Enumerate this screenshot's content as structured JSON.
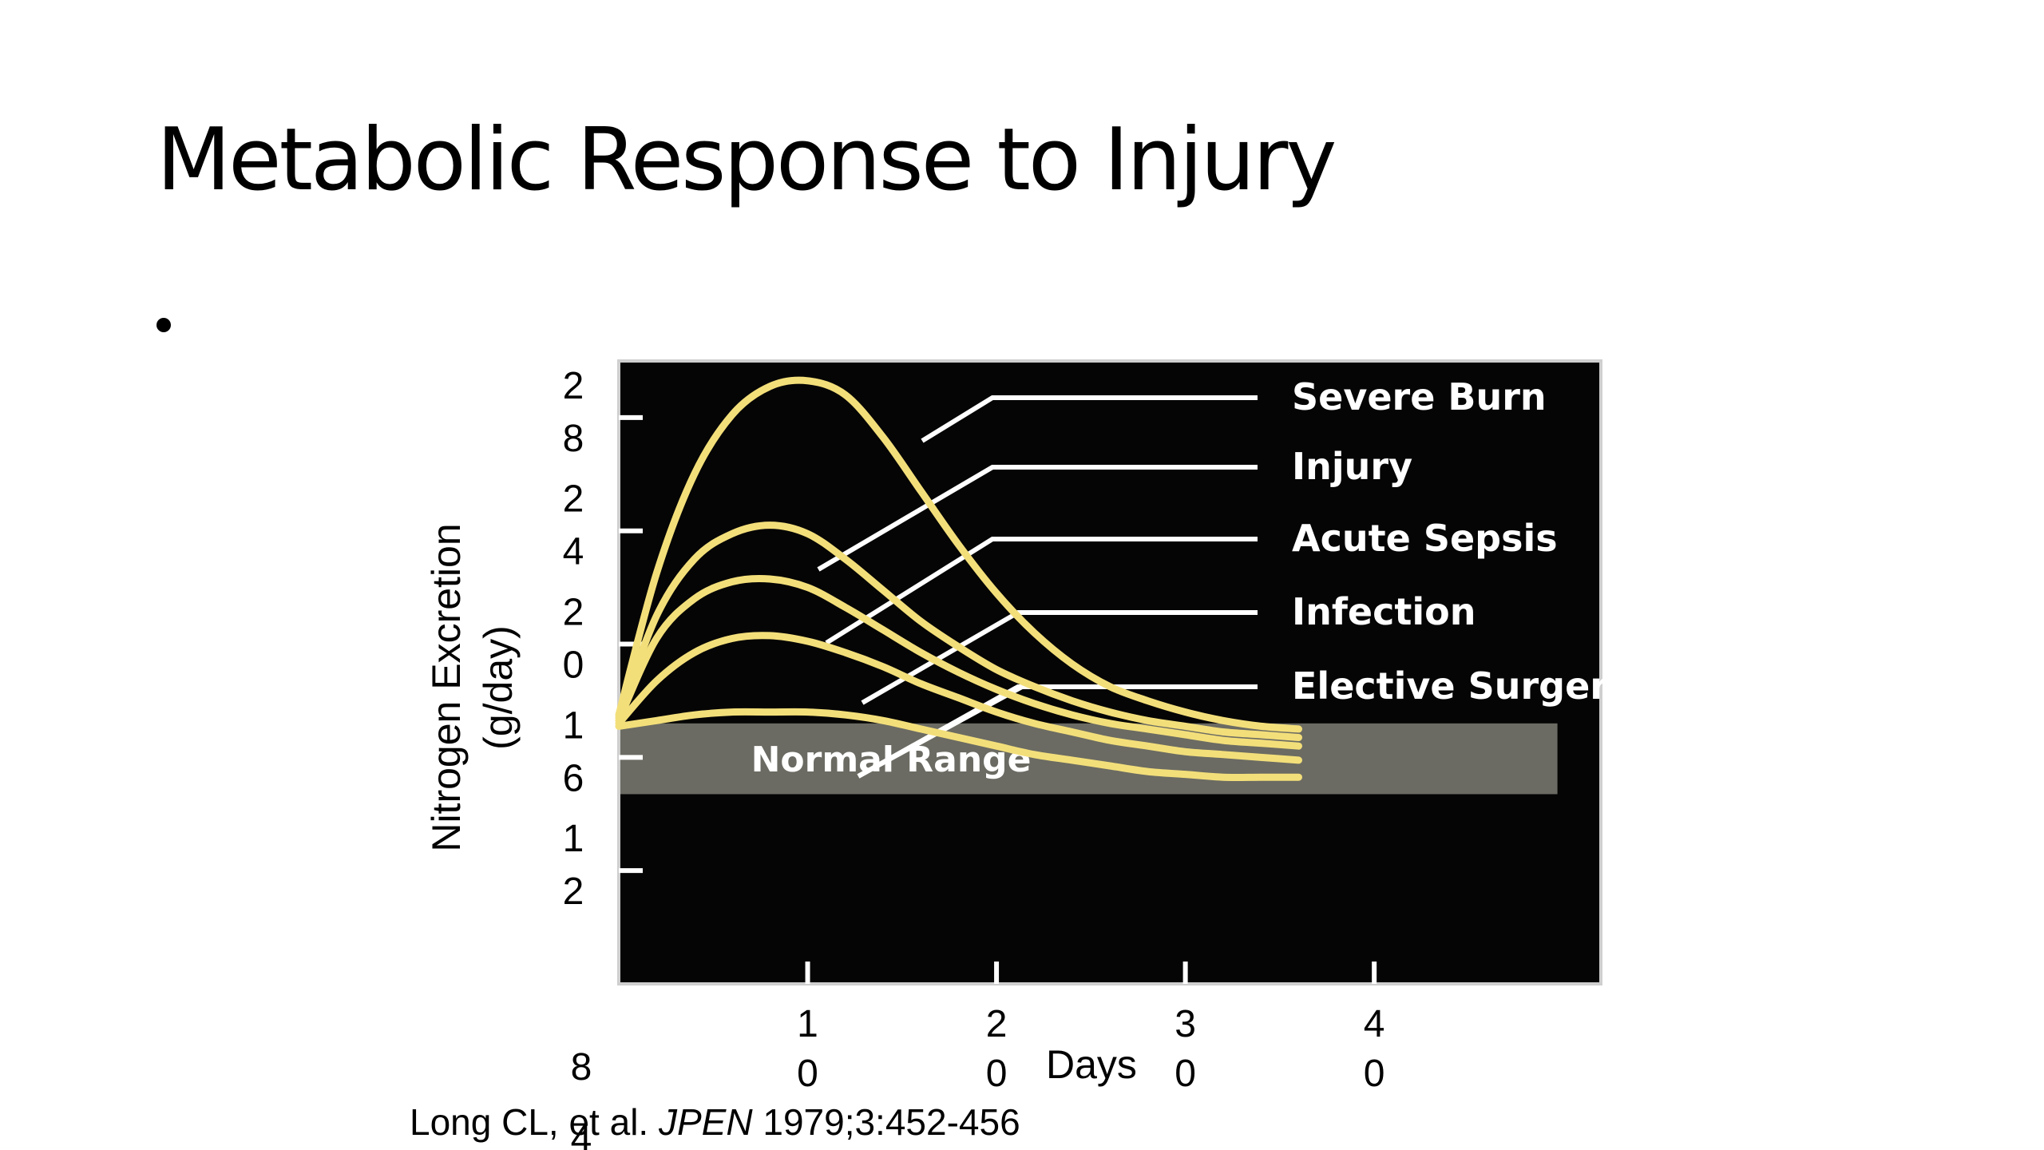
{
  "slide": {
    "title": "Metabolic Response to Injury"
  },
  "citation": {
    "authors": "Long CL, et al. ",
    "journal": "JPEN",
    "rest": " 1979;3:452-456"
  },
  "colors": {
    "plot_background": "#050505",
    "curve": "#f3df7a",
    "normal_band": "#6b6b63",
    "text_on_plot": "#ffffff"
  },
  "chart_data": {
    "type": "line",
    "xlabel": "Days",
    "ylabel": "Nitrogen Excretion (g/day)",
    "xlim": [
      0,
      52
    ],
    "ylim": [
      8,
      30
    ],
    "x_ticks": [
      {
        "value": 10,
        "lines": [
          "1",
          "0"
        ]
      },
      {
        "value": 20,
        "lines": [
          "2",
          "0"
        ]
      },
      {
        "value": 30,
        "lines": [
          "3",
          "0"
        ]
      },
      {
        "value": 40,
        "lines": [
          "4",
          "0"
        ]
      }
    ],
    "x_origin_label": {
      "lines": [
        "8",
        "4"
      ]
    },
    "y_ticks": [
      {
        "value": 12,
        "lines": [
          "1",
          "2"
        ]
      },
      {
        "value": 16,
        "lines": [
          "1",
          "6"
        ]
      },
      {
        "value": 20,
        "lines": [
          "2",
          "0"
        ]
      },
      {
        "value": 24,
        "lines": [
          "2",
          "4"
        ]
      },
      {
        "value": 28,
        "lines": [
          "2",
          "8"
        ]
      }
    ],
    "normal_range": {
      "label": "Normal Range",
      "y": [
        14.7,
        17.2
      ]
    },
    "series": [
      {
        "name": "Severe Burn",
        "x": [
          0,
          2,
          4,
          6,
          8,
          10,
          12,
          14,
          16,
          18,
          20,
          22,
          24,
          26,
          28,
          30,
          32,
          34,
          36
        ],
        "y": [
          17.5,
          22.5,
          26.0,
          28.1,
          29.1,
          29.3,
          28.8,
          27.3,
          25.4,
          23.5,
          21.8,
          20.4,
          19.3,
          18.5,
          18.0,
          17.6,
          17.3,
          17.1,
          17.0
        ]
      },
      {
        "name": "Injury",
        "x": [
          0,
          2,
          4,
          6,
          8,
          10,
          12,
          14,
          16,
          18,
          20,
          22,
          24,
          26,
          28,
          30,
          32,
          34,
          36
        ],
        "y": [
          17.4,
          21.0,
          23.0,
          23.9,
          24.2,
          23.9,
          23.0,
          21.9,
          20.8,
          19.9,
          19.1,
          18.5,
          18.0,
          17.6,
          17.3,
          17.1,
          16.9,
          16.8,
          16.7
        ]
      },
      {
        "name": "Acute Sepsis",
        "x": [
          0,
          2,
          4,
          6,
          8,
          10,
          12,
          14,
          16,
          18,
          20,
          22,
          24,
          26,
          28,
          30,
          32,
          34,
          36
        ],
        "y": [
          17.3,
          20.2,
          21.6,
          22.2,
          22.3,
          22.0,
          21.3,
          20.5,
          19.7,
          19.0,
          18.4,
          17.9,
          17.5,
          17.2,
          17.0,
          16.8,
          16.6,
          16.5,
          16.4
        ]
      },
      {
        "name": "Infection",
        "x": [
          0,
          2,
          4,
          6,
          8,
          10,
          12,
          14,
          16,
          18,
          20,
          22,
          24,
          26,
          28,
          30,
          32,
          34,
          36
        ],
        "y": [
          17.2,
          18.7,
          19.7,
          20.2,
          20.3,
          20.1,
          19.7,
          19.2,
          18.6,
          18.1,
          17.6,
          17.2,
          16.9,
          16.6,
          16.4,
          16.2,
          16.1,
          16.0,
          15.9
        ]
      },
      {
        "name": "Elective Surgery",
        "x": [
          0,
          2,
          4,
          6,
          8,
          10,
          12,
          14,
          16,
          18,
          20,
          22,
          24,
          26,
          28,
          30,
          32,
          34,
          36
        ],
        "y": [
          17.1,
          17.3,
          17.5,
          17.6,
          17.6,
          17.6,
          17.5,
          17.3,
          17.0,
          16.7,
          16.4,
          16.1,
          15.9,
          15.7,
          15.5,
          15.4,
          15.3,
          15.3,
          15.3
        ]
      }
    ],
    "legend_placement": "right, inside plot",
    "grid": false
  }
}
